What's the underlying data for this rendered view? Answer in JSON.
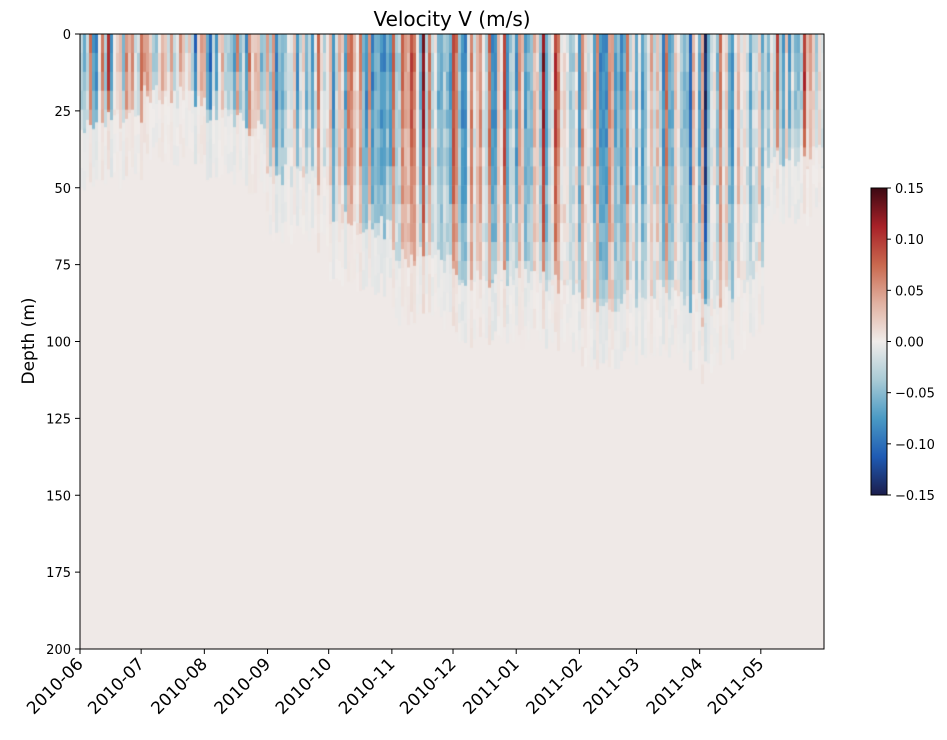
{
  "chart_data": {
    "type": "heatmap",
    "title": "Velocity V (m/s)",
    "xlabel": "",
    "ylabel": "Depth (m)",
    "x_axis": {
      "type": "date",
      "range": [
        "2010-06-01",
        "2011-06-01"
      ],
      "ticks": [
        "2010-06",
        "2010-07",
        "2010-08",
        "2010-09",
        "2010-10",
        "2010-11",
        "2010-12",
        "2011-01",
        "2011-02",
        "2011-03",
        "2011-04",
        "2011-05"
      ],
      "tick_dates": [
        "2010-06-01",
        "2010-07-01",
        "2010-08-01",
        "2010-09-01",
        "2010-10-01",
        "2010-11-01",
        "2010-12-01",
        "2011-01-01",
        "2011-02-01",
        "2011-03-01",
        "2011-04-01",
        "2011-05-01"
      ]
    },
    "y_axis": {
      "range": [
        0,
        200
      ],
      "inverted": true,
      "ticks": [
        "0",
        "25",
        "50",
        "75",
        "100",
        "125",
        "150",
        "175",
        "200"
      ]
    },
    "colorbar": {
      "range": [
        -0.15,
        0.15
      ],
      "ticks": [
        "0.15",
        "0.10",
        "0.05",
        "0.00",
        "−0.05",
        "−0.10",
        "−0.15"
      ],
      "colormap": "balance",
      "colors": [
        "#1b1d4c",
        "#1f5bb4",
        "#4a9ac4",
        "#a9cbd6",
        "#f0ecea",
        "#e1b1a1",
        "#c9684e",
        "#a82128",
        "#3c0912"
      ]
    },
    "fill_color": "#efe9e7",
    "active_depth_profile": {
      "description_months": [
        "2010-06",
        "2010-07",
        "2010-08",
        "2010-09",
        "2010-10",
        "2010-11",
        "2010-12",
        "2011-01",
        "2011-02",
        "2011-03",
        "2011-04",
        "2011-05"
      ],
      "max_depth_m": [
        30,
        20,
        25,
        45,
        60,
        72,
        80,
        80,
        87,
        85,
        92,
        40
      ]
    }
  }
}
